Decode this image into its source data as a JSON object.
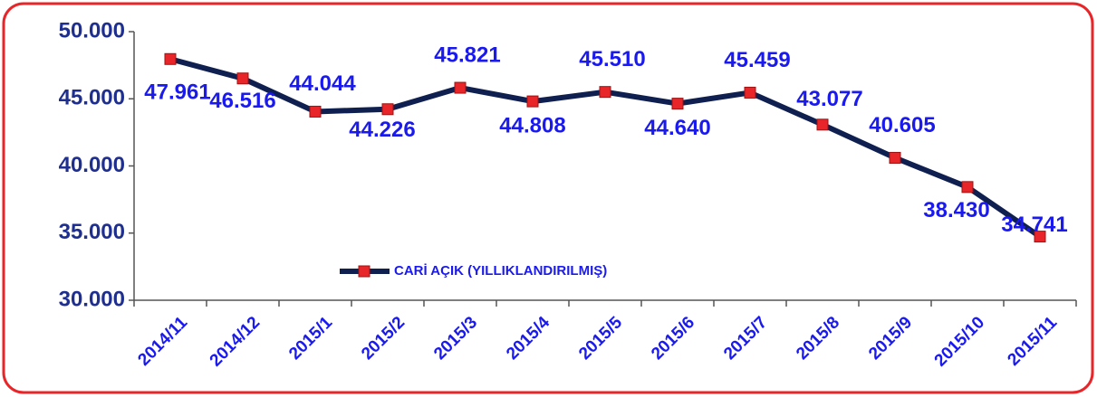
{
  "chart_data": {
    "type": "line",
    "categories": [
      "2014/11",
      "2014/12",
      "2015/1",
      "2015/2",
      "2015/3",
      "2015/4",
      "2015/5",
      "2015/6",
      "2015/7",
      "2015/8",
      "2015/9",
      "2015/10",
      "2015/11"
    ],
    "series": [
      {
        "name": "CARİ AÇIK (YILLIKLANDIRILMIŞ)",
        "color": "#0f1f4f",
        "marker_color": "#e8262a",
        "values": [
          47961,
          46516,
          44044,
          44226,
          45821,
          44808,
          45510,
          44640,
          45459,
          43077,
          40605,
          38430,
          34741
        ],
        "value_labels": [
          "47.961",
          "46.516",
          "44.044",
          "44.226",
          "45.821",
          "44.808",
          "45.510",
          "44.640",
          "45.459",
          "43.077",
          "40.605",
          "38.430",
          "34.741"
        ]
      }
    ],
    "ylim": [
      30000,
      50000
    ],
    "yticks": [
      {
        "value": 30000,
        "label": "30.000"
      },
      {
        "value": 35000,
        "label": "35.000"
      },
      {
        "value": 40000,
        "label": "40.000"
      },
      {
        "value": 45000,
        "label": "45.000"
      },
      {
        "value": 50000,
        "label": "50.000"
      }
    ],
    "grid": false,
    "legend": "lower-left"
  }
}
